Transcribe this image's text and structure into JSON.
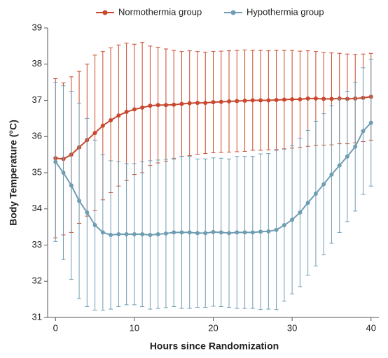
{
  "chart_data": {
    "type": "line",
    "xlabel": "Hours since Randomization",
    "ylabel": "Body Temperature (°C)",
    "x": [
      0,
      1,
      2,
      3,
      4,
      5,
      6,
      7,
      8,
      9,
      10,
      11,
      12,
      13,
      14,
      15,
      16,
      17,
      18,
      19,
      20,
      21,
      22,
      23,
      24,
      25,
      26,
      27,
      28,
      29,
      30,
      31,
      32,
      33,
      34,
      35,
      36,
      37,
      38,
      39,
      40
    ],
    "series": [
      {
        "name": "Normothermia group",
        "color": "#c9482f",
        "values": [
          35.4,
          35.38,
          35.5,
          35.7,
          35.9,
          36.1,
          36.3,
          36.45,
          36.58,
          36.68,
          36.75,
          36.8,
          36.85,
          36.87,
          36.87,
          36.88,
          36.9,
          36.92,
          36.93,
          36.93,
          36.95,
          36.96,
          36.97,
          36.98,
          36.99,
          37.0,
          37.0,
          37.0,
          37.01,
          37.02,
          37.03,
          37.03,
          37.05,
          37.05,
          37.04,
          37.04,
          37.05,
          37.04,
          37.05,
          37.07,
          37.1
        ],
        "errors": [
          2.2,
          2.1,
          2.15,
          2.1,
          2.1,
          2.15,
          2.05,
          2.0,
          1.95,
          1.9,
          1.8,
          1.8,
          1.65,
          1.6,
          1.55,
          1.5,
          1.45,
          1.45,
          1.42,
          1.4,
          1.4,
          1.4,
          1.4,
          1.4,
          1.4,
          1.38,
          1.38,
          1.37,
          1.37,
          1.36,
          1.35,
          1.33,
          1.32,
          1.3,
          1.28,
          1.27,
          1.25,
          1.24,
          1.22,
          1.21,
          1.2
        ]
      },
      {
        "name": "Hypothermia group",
        "color": "#6f9db3",
        "values": [
          35.3,
          35.0,
          34.65,
          34.22,
          33.9,
          33.55,
          33.35,
          33.28,
          33.3,
          33.3,
          33.3,
          33.3,
          33.28,
          33.3,
          33.32,
          33.35,
          33.35,
          33.35,
          33.33,
          33.33,
          33.36,
          33.35,
          33.33,
          33.35,
          33.35,
          33.35,
          33.37,
          33.38,
          33.42,
          33.55,
          33.7,
          33.9,
          34.17,
          34.42,
          34.68,
          34.95,
          35.2,
          35.45,
          35.72,
          36.15,
          36.38
        ],
        "errors": [
          2.2,
          2.4,
          2.6,
          2.7,
          2.6,
          2.35,
          2.15,
          2.05,
          2.0,
          1.95,
          1.95,
          2.0,
          2.05,
          2.05,
          2.05,
          2.05,
          2.1,
          2.1,
          2.05,
          2.05,
          2.05,
          2.05,
          2.05,
          2.1,
          2.1,
          2.1,
          2.15,
          2.15,
          2.2,
          2.1,
          2.05,
          2.05,
          2.0,
          2.0,
          1.95,
          1.9,
          1.85,
          1.8,
          1.78,
          1.75,
          1.75
        ]
      }
    ],
    "xlim": [
      -1,
      41
    ],
    "xticks": [
      0,
      10,
      20,
      30,
      40
    ],
    "ylim": [
      31,
      39
    ],
    "yticks": [
      31,
      32,
      33,
      34,
      35,
      36,
      37,
      38,
      39
    ],
    "grid": false
  }
}
